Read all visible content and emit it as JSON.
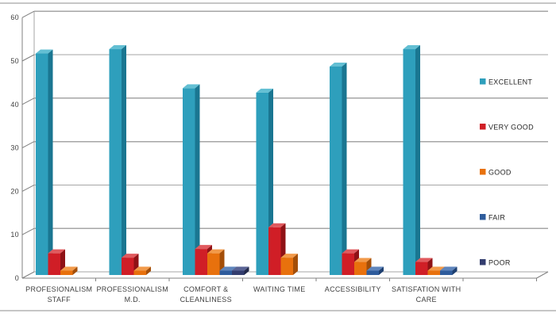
{
  "window": {
    "background": "#ffffff"
  },
  "chart_data": {
    "type": "bar",
    "projection": "3d-columns",
    "title": "",
    "xlabel": "",
    "ylabel": "",
    "categories": [
      [
        "PROFESIONALISM",
        "STAFF"
      ],
      [
        "PROFESSIONALISM",
        "M.D."
      ],
      [
        "COMFORT &",
        "CLEANLINESS"
      ],
      [
        "WAITING TIME"
      ],
      [
        "ACCESSIBILITY"
      ],
      [
        "SATISFATION WITH",
        "CARE"
      ]
    ],
    "series": [
      {
        "name": "EXCELLENT",
        "color": "#2e9fbc",
        "top_color": "#63bfd3",
        "side_color": "#1a7691",
        "values": [
          51,
          52,
          43,
          42,
          48,
          52
        ]
      },
      {
        "name": "VERY GOOD",
        "color": "#d01e26",
        "top_color": "#e05a5e",
        "side_color": "#8f1216",
        "values": [
          5,
          4,
          6,
          11,
          5,
          3
        ]
      },
      {
        "name": "GOOD",
        "color": "#e8710d",
        "top_color": "#f29a4a",
        "side_color": "#a34e08",
        "values": [
          1,
          1,
          5,
          4,
          3,
          1
        ]
      },
      {
        "name": "FAIR",
        "color": "#2e5c9c",
        "top_color": "#5f85bc",
        "side_color": "#1d3f70",
        "values": [
          0,
          0,
          1,
          0,
          1,
          1
        ]
      },
      {
        "name": "POOR",
        "color": "#333d6e",
        "top_color": "#5a6495",
        "side_color": "#222949",
        "values": [
          0,
          0,
          1,
          0,
          0,
          0
        ]
      }
    ],
    "y_axis": {
      "min": 0,
      "max": 60,
      "step": 10,
      "tick_labels": [
        "0",
        "10",
        "20",
        "30",
        "40",
        "50",
        "60"
      ]
    },
    "grid": true,
    "legend_position": "right",
    "legend_labels": [
      "EXCELLENT",
      "VERY GOOD",
      "GOOD",
      "FAIR",
      "POOR"
    ]
  },
  "colors": {
    "gridline": "#a6a6a6",
    "axis": "#808080",
    "text": "#3f3f3f",
    "frame_border": "#c6c6c6"
  }
}
